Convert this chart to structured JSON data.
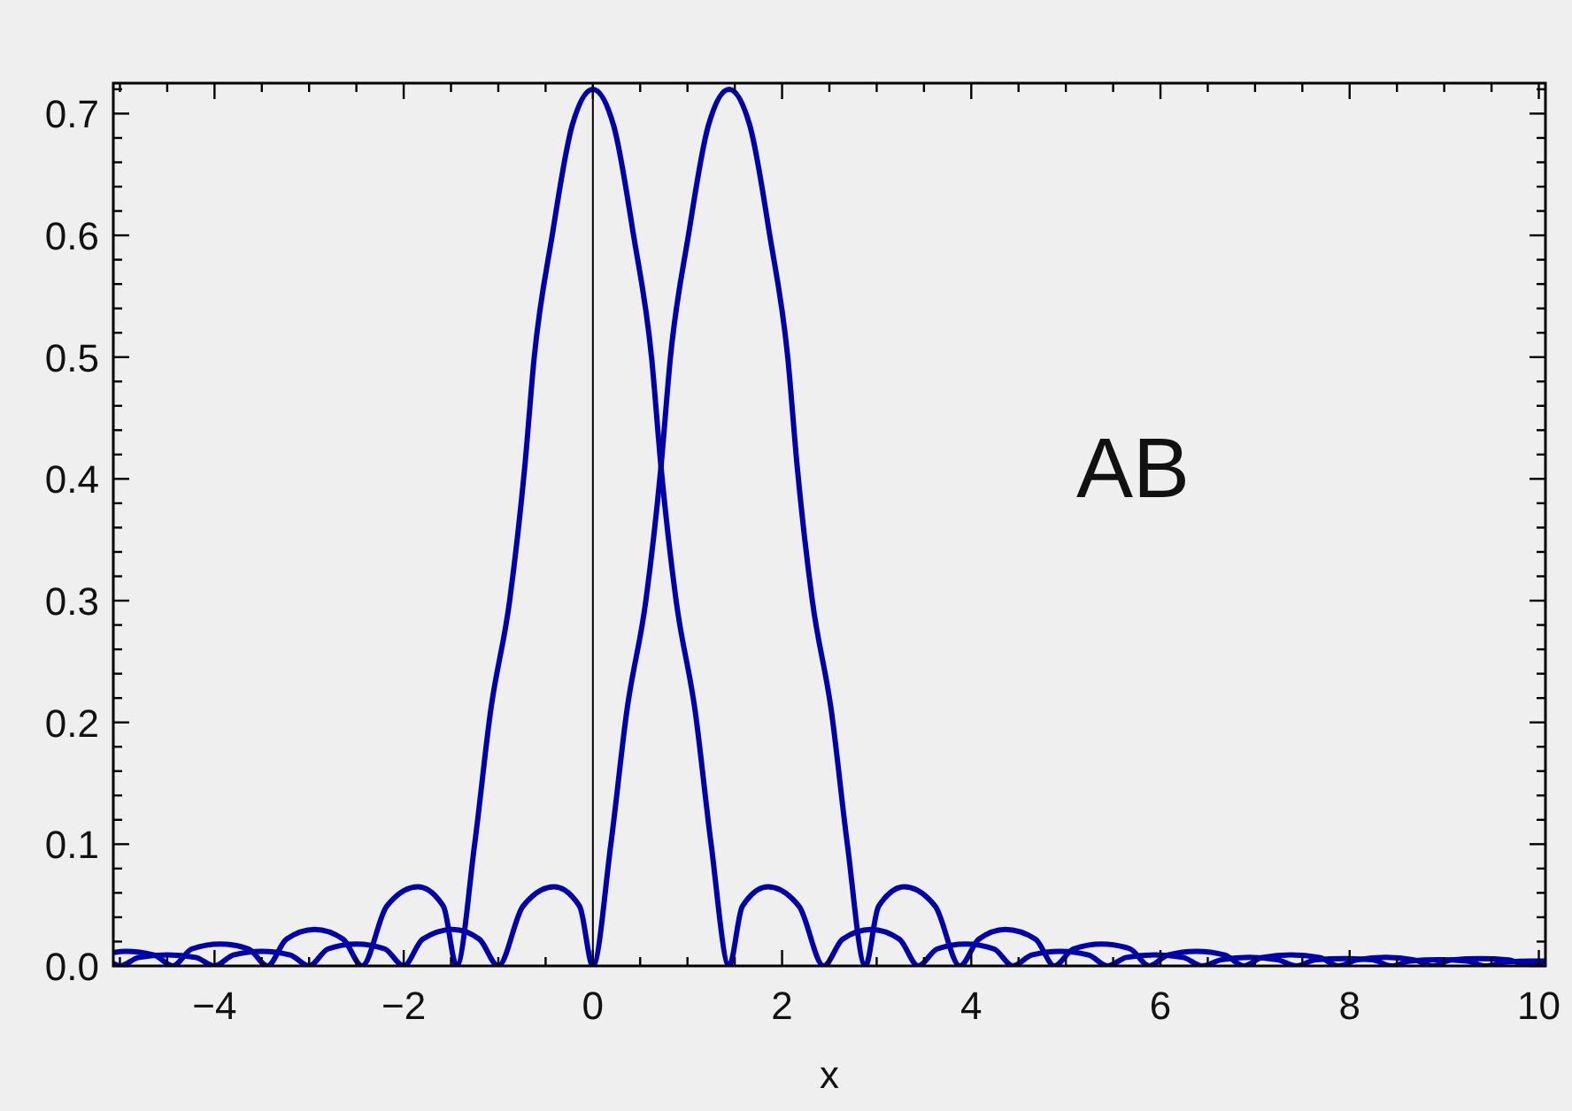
{
  "chart_data": {
    "type": "line",
    "xlabel": "x",
    "annotations": [
      "AB"
    ],
    "xlim": [
      -5.07,
      10.07
    ],
    "ylim": [
      0,
      0.725
    ],
    "xticks": [
      {
        "value": -5,
        "label": null
      },
      {
        "value": -4.5,
        "label": null
      },
      {
        "value": -4,
        "label": "−4"
      },
      {
        "value": -3.5,
        "label": null
      },
      {
        "value": -3,
        "label": null
      },
      {
        "value": -2.5,
        "label": null
      },
      {
        "value": -2,
        "label": "−2"
      },
      {
        "value": -1.5,
        "label": null
      },
      {
        "value": -1,
        "label": null
      },
      {
        "value": -0.5,
        "label": null
      },
      0,
      {
        "value": 0.5,
        "label": null
      },
      {
        "value": 1,
        "label": null
      },
      {
        "value": 1.5,
        "label": null
      },
      2,
      {
        "value": 2.5,
        "label": null
      },
      {
        "value": 3,
        "label": null
      },
      {
        "value": 3.5,
        "label": null
      },
      4,
      {
        "value": 4.5,
        "label": null
      },
      {
        "value": 5,
        "label": null
      },
      {
        "value": 5.5,
        "label": null
      },
      6,
      {
        "value": 6.5,
        "label": null
      },
      {
        "value": 7,
        "label": null
      },
      {
        "value": 7.5,
        "label": null
      },
      8,
      {
        "value": 8.5,
        "label": null
      },
      {
        "value": 9,
        "label": null
      },
      {
        "value": 9.5,
        "label": null
      },
      10
    ],
    "yticks": [
      {
        "value": 0,
        "label": "0.0"
      },
      {
        "value": 0.02,
        "label": null
      },
      {
        "value": 0.04,
        "label": null
      },
      {
        "value": 0.06,
        "label": null
      },
      {
        "value": 0.08,
        "label": null
      },
      0.1,
      {
        "value": 0.12,
        "label": null
      },
      {
        "value": 0.14,
        "label": null
      },
      {
        "value": 0.16,
        "label": null
      },
      {
        "value": 0.18,
        "label": null
      },
      0.2,
      {
        "value": 0.22,
        "label": null
      },
      {
        "value": 0.24,
        "label": null
      },
      {
        "value": 0.26,
        "label": null
      },
      {
        "value": 0.28,
        "label": null
      },
      0.3,
      {
        "value": 0.32,
        "label": null
      },
      {
        "value": 0.34,
        "label": null
      },
      {
        "value": 0.36,
        "label": null
      },
      {
        "value": 0.38,
        "label": null
      },
      0.4,
      {
        "value": 0.42,
        "label": null
      },
      {
        "value": 0.44,
        "label": null
      },
      {
        "value": 0.46,
        "label": null
      },
      {
        "value": 0.48,
        "label": null
      },
      0.5,
      {
        "value": 0.52,
        "label": null
      },
      {
        "value": 0.54,
        "label": null
      },
      {
        "value": 0.56,
        "label": null
      },
      {
        "value": 0.58,
        "label": null
      },
      0.6,
      {
        "value": 0.62,
        "label": null
      },
      {
        "value": 0.64,
        "label": null
      },
      {
        "value": 0.66,
        "label": null
      },
      {
        "value": 0.68,
        "label": null
      },
      0.7,
      {
        "value": 0.72,
        "label": null
      }
    ],
    "grid": false,
    "marker": "none",
    "line_style": "solid",
    "ref_lines": [
      {
        "axis": "x",
        "value": 0,
        "color": "#000000"
      }
    ],
    "series": [
      {
        "color": "#0000aa",
        "x": [
          -5.07,
          -4.94,
          -4.64,
          -4.44,
          -4.24,
          -3.94,
          -3.64,
          -3.44,
          -3.24,
          -2.94,
          -2.64,
          -2.44,
          -2.18,
          -1.85,
          -1.58,
          -1.44,
          -1.25,
          -1.08,
          -0.88,
          -0.72,
          -0.62,
          -0.43,
          -0.22,
          0,
          0.22,
          0.43,
          0.62,
          0.72,
          0.88,
          1.08,
          1.25,
          1.44,
          1.58,
          1.85,
          2.18,
          2.44,
          2.64,
          2.94,
          3.24,
          3.44,
          3.64,
          3.94,
          4.24,
          4.44,
          4.64,
          4.94,
          5.24,
          5.44,
          5.64,
          5.94,
          6.24,
          6.44,
          6.64,
          6.94,
          7.24,
          7.44,
          7.64,
          7.94,
          8.24,
          8.44,
          8.64,
          8.94,
          9.24,
          9.44,
          9.64,
          9.94,
          10.07
        ],
        "values": [
          0.011,
          0.012,
          0.009,
          0,
          0.014,
          0.018,
          0.014,
          0,
          0.022,
          0.03,
          0.022,
          0,
          0.049,
          0.065,
          0.049,
          0,
          0.1,
          0.21,
          0.3,
          0.41,
          0.5,
          0.6,
          0.69,
          0.72,
          0.69,
          0.6,
          0.5,
          0.41,
          0.3,
          0.21,
          0.1,
          0,
          0.049,
          0.065,
          0.049,
          0,
          0.022,
          0.03,
          0.022,
          0,
          0.014,
          0.018,
          0.014,
          0,
          0.009,
          0.012,
          0.009,
          0,
          0.007,
          0.009,
          0.007,
          0,
          0.005,
          0.007,
          0.005,
          0,
          0.005,
          0.006,
          0.005,
          0,
          0.004,
          0.005,
          0.004,
          0,
          0.003,
          0.004,
          0.004
        ]
      },
      {
        "color": "#0000aa",
        "x": [
          -5.07,
          -5.0,
          -4.8,
          -4.5,
          -4.2,
          -4.0,
          -3.8,
          -3.5,
          -3.2,
          -3.0,
          -2.8,
          -2.5,
          -2.2,
          -2.0,
          -1.8,
          -1.48,
          -1.2,
          -1.0,
          -0.74,
          -0.41,
          -0.14,
          0,
          0.19,
          0.36,
          0.56,
          0.72,
          0.82,
          1.01,
          1.22,
          1.44,
          1.66,
          1.87,
          2.06,
          2.16,
          2.32,
          2.52,
          2.69,
          2.88,
          3.02,
          3.29,
          3.62,
          3.88,
          4.08,
          4.36,
          4.68,
          4.88,
          5.08,
          5.38,
          5.68,
          5.88,
          6.08,
          6.38,
          6.68,
          6.88,
          7.08,
          7.38,
          7.68,
          7.88,
          8.08,
          8.38,
          8.68,
          8.88,
          9.08,
          9.38,
          9.68,
          9.88,
          10.07
        ],
        "values": [
          0.002,
          0,
          0.007,
          0.009,
          0.007,
          0,
          0.009,
          0.012,
          0.009,
          0,
          0.014,
          0.018,
          0.014,
          0,
          0.022,
          0.03,
          0.022,
          0,
          0.049,
          0.065,
          0.049,
          0,
          0.1,
          0.21,
          0.3,
          0.41,
          0.5,
          0.6,
          0.69,
          0.72,
          0.69,
          0.6,
          0.5,
          0.41,
          0.3,
          0.21,
          0.1,
          0,
          0.049,
          0.065,
          0.049,
          0,
          0.022,
          0.03,
          0.022,
          0,
          0.014,
          0.018,
          0.014,
          0,
          0.009,
          0.012,
          0.009,
          0,
          0.007,
          0.009,
          0.007,
          0,
          0.005,
          0.007,
          0.005,
          0,
          0.005,
          0.006,
          0.005,
          0,
          0.004
        ]
      }
    ]
  }
}
